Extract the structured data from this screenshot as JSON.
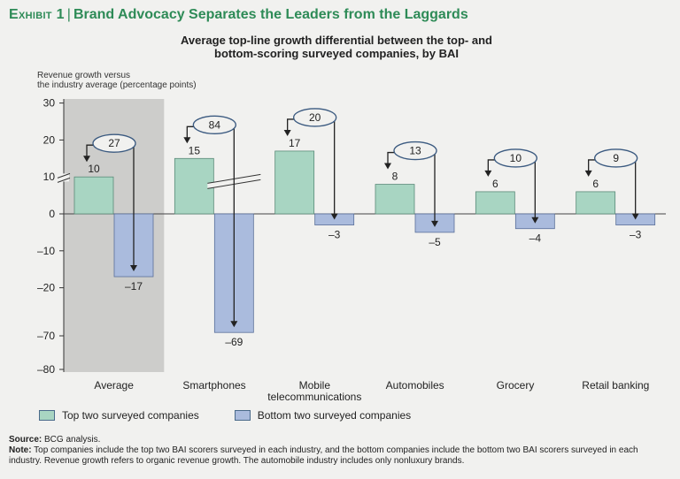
{
  "exhibit": {
    "label": "Exhibit 1",
    "separator": "|",
    "title": "Brand Advocacy Separates the Leaders from the Laggards"
  },
  "chart_data": {
    "type": "bar",
    "title_line1": "Average top-line growth differential between the top- and",
    "title_line2": "bottom-scoring surveyed companies, by BAI",
    "ylabel_line1": "Revenue growth versus",
    "ylabel_line2": "the industry average (percentage points)",
    "categories": [
      "Average",
      "Smartphones",
      "Mobile\ntelecommunications",
      "Automobiles",
      "Grocery",
      "Retail banking"
    ],
    "series": [
      {
        "name": "Top two surveyed companies",
        "color": "#a8d5c2",
        "values": [
          10,
          15,
          17,
          8,
          6,
          6
        ],
        "labels": [
          "10",
          "15",
          "17",
          "8",
          "6",
          "6"
        ]
      },
      {
        "name": "Bottom two surveyed companies",
        "color": "#aabbdd",
        "values": [
          -17,
          -69,
          -3,
          -5,
          -4,
          -3
        ],
        "labels": [
          "–17",
          "–69",
          "–3",
          "–5",
          "–4",
          "–3"
        ]
      }
    ],
    "differentials": [
      "27",
      "84",
      "20",
      "13",
      "10",
      "9"
    ],
    "yticks": [
      "30",
      "20",
      "10",
      "0",
      "–10",
      "–20",
      "–70",
      "–80"
    ],
    "ylim": [
      -80,
      30
    ],
    "axis_break": "between –20 and –70",
    "highlight_category": "Average",
    "highlight_color": "#cdcdcb"
  },
  "legend": {
    "top_label": "Top two surveyed companies",
    "bottom_label": "Bottom two surveyed companies",
    "top_color": "#a8d5c2",
    "bottom_color": "#aabbdd"
  },
  "notes": {
    "source_label": "Source:",
    "source_text": "BCG analysis.",
    "note_label": "Note:",
    "note_text": "Top companies include the top two BAI scorers surveyed in each industry, and the bottom companies include the bottom two BAI scorers surveyed in each industry. Revenue growth refers to organic revenue growth. The automobile industry includes only nonluxury brands."
  }
}
